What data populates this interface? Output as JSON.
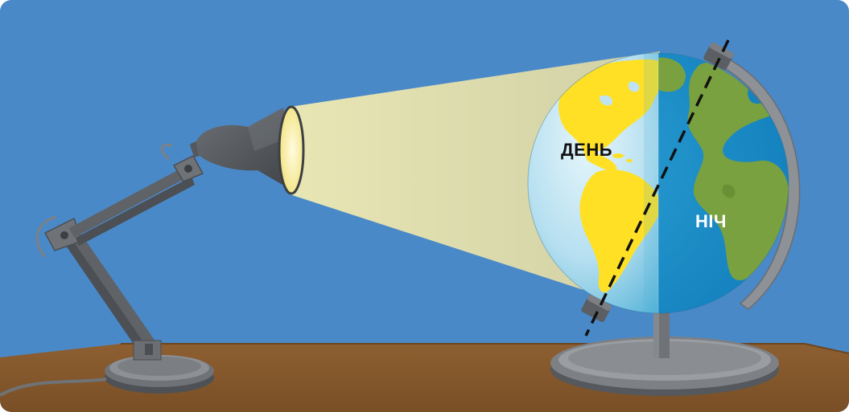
{
  "labels": {
    "day": "ДЕНЬ",
    "night": "НІЧ"
  },
  "colors": {
    "sky": "#4a89c8",
    "table": "#8b5e30",
    "light_beam": "#d8d6a8",
    "lamp_body": "#55585c",
    "day_ocean": "#bfe3f2",
    "night_ocean": "#1e8fc6",
    "day_land": "#ffe024",
    "night_land": "#7aa13f",
    "stand": "#8c8f93"
  }
}
